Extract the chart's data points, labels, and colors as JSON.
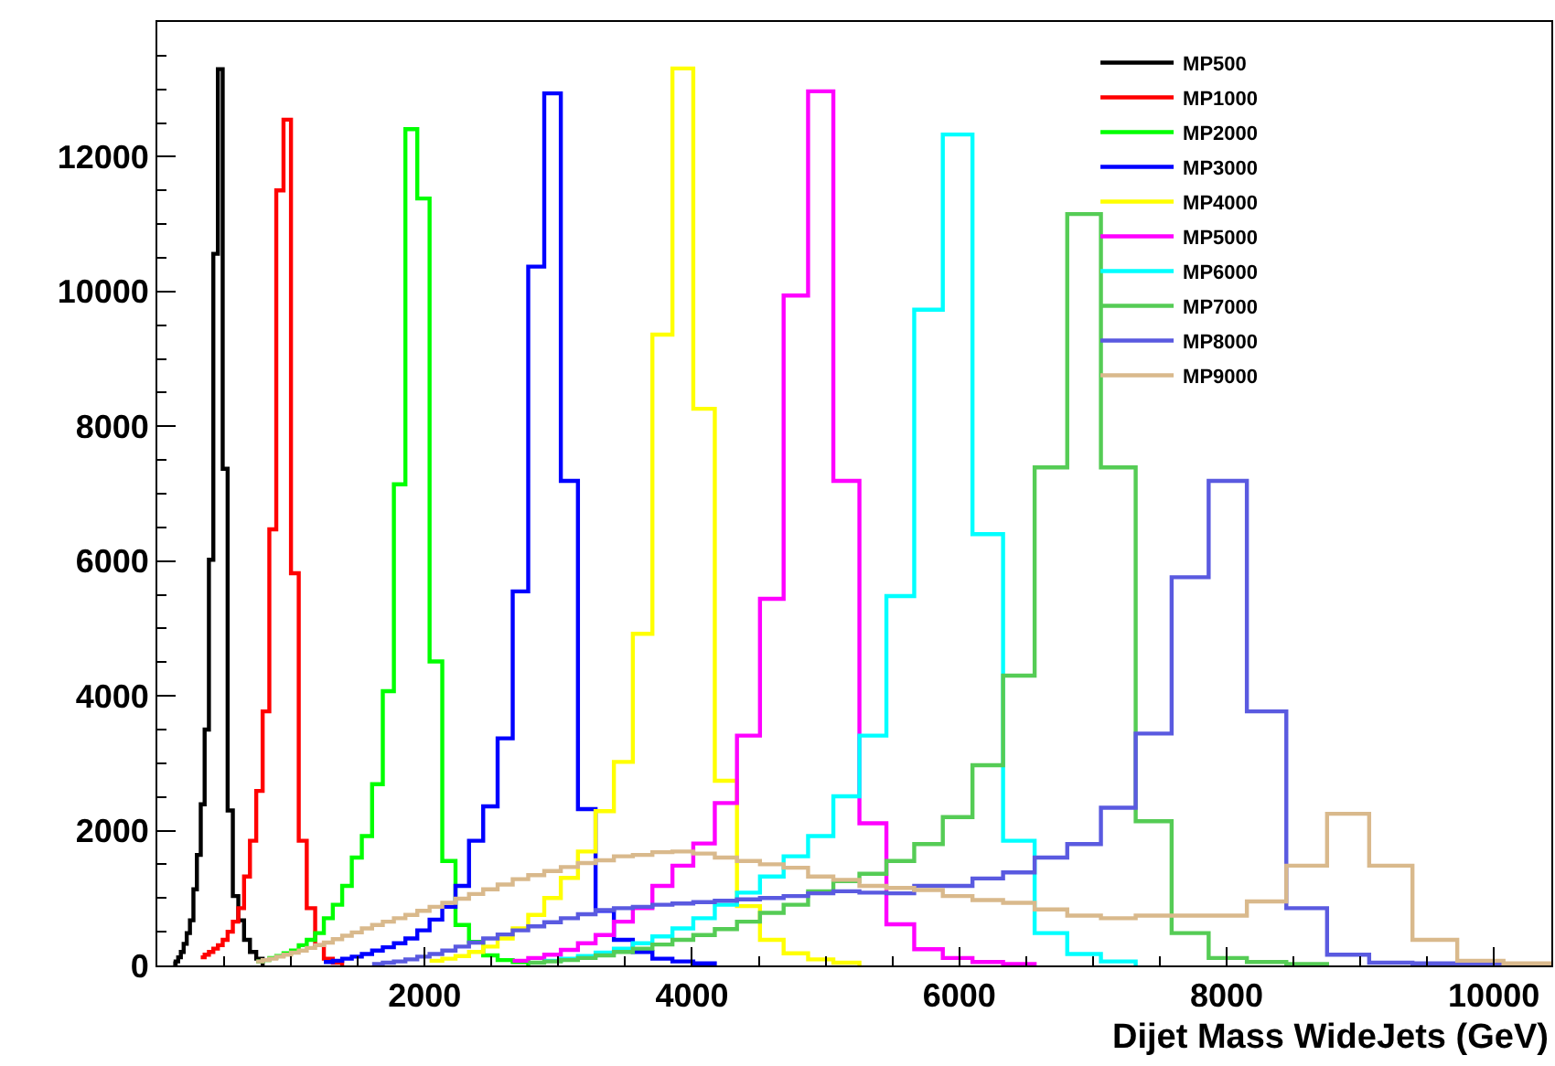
{
  "chart_data": {
    "type": "step",
    "xlabel": "Dijet Mass WideJets (GeV)",
    "xlim": [
      0,
      10430
    ],
    "ylim": [
      0,
      14000
    ],
    "xticks": [
      2000,
      4000,
      6000,
      8000,
      10000
    ],
    "yticks": [
      0,
      2000,
      4000,
      6000,
      8000,
      10000,
      12000
    ],
    "legend": "top right",
    "series": [
      {
        "name": "MP500",
        "color": "#000000",
        "x": [
          119,
          137,
          156,
          176,
          197,
          220,
          244,
          270,
          296,
          325,
          354,
          386,
          419,
          453,
          489,
          526,
          565,
          606,
          649,
          693,
          740,
          788
        ],
        "values": [
          30,
          60,
          120,
          200,
          320,
          480,
          670,
          1130,
          1640,
          2390,
          3500,
          6020,
          10560,
          13300,
          7370,
          2300,
          1030,
          670,
          380,
          200,
          100,
          0
        ]
      },
      {
        "name": "MP1000",
        "color": "#ff0000",
        "x": [
          325,
          354,
          386,
          419,
          453,
          489,
          526,
          565,
          606,
          649,
          693,
          740,
          788,
          838,
          890,
          944,
          1000,
          1058,
          1118,
          1181,
          1246,
          1313,
          1383
        ],
        "values": [
          120,
          160,
          200,
          250,
          300,
          380,
          500,
          650,
          850,
          1320,
          1850,
          2590,
          3770,
          6470,
          11500,
          12550,
          5820,
          1850,
          850,
          300,
          100,
          40,
          0
        ]
      },
      {
        "name": "MP2000",
        "color": "#00ff00",
        "x": [
          740,
          788,
          838,
          890,
          944,
          1000,
          1058,
          1118,
          1181,
          1246,
          1313,
          1383,
          1455,
          1530,
          1607,
          1687,
          1770,
          1856,
          1945,
          2037,
          2132,
          2231,
          2332,
          2438,
          2546,
          2659,
          2775
        ],
        "values": [
          60,
          80,
          110,
          140,
          180,
          220,
          300,
          380,
          480,
          700,
          900,
          1180,
          1600,
          1920,
          2690,
          4070,
          7140,
          12410,
          11380,
          4510,
          1550,
          600,
          350,
          150,
          80,
          50,
          0
        ]
      },
      {
        "name": "MP3000",
        "color": "#0000ff",
        "x": [
          1246,
          1313,
          1383,
          1455,
          1530,
          1607,
          1687,
          1770,
          1856,
          1945,
          2037,
          2132,
          2231,
          2332,
          2438,
          2546,
          2659,
          2775,
          2895,
          3019,
          3147,
          3279,
          3416,
          3558,
          3704,
          3854,
          4010,
          4171
        ],
        "values": [
          50,
          70,
          100,
          130,
          170,
          220,
          270,
          330,
          400,
          520,
          680,
          870,
          1180,
          1850,
          2360,
          3370,
          5550,
          10370,
          12940,
          7190,
          2320,
          810,
          380,
          200,
          100,
          60,
          30,
          0
        ]
      },
      {
        "name": "MP4000",
        "color": "#ffff00",
        "x": [
          2037,
          2132,
          2231,
          2332,
          2438,
          2546,
          2659,
          2775,
          2895,
          3019,
          3147,
          3279,
          3416,
          3558,
          3704,
          3854,
          4010,
          4171,
          4337,
          4509,
          4686,
          4869,
          5058,
          5253
        ],
        "values": [
          70,
          100,
          140,
          200,
          280,
          400,
          550,
          750,
          1000,
          1300,
          1690,
          2290,
          3020,
          4920,
          9360,
          13310,
          8260,
          2740,
          880,
          380,
          180,
          90,
          40,
          0
        ]
      },
      {
        "name": "MP5000",
        "color": "#ff00ff",
        "x": [
          2659,
          2775,
          2895,
          3019,
          3147,
          3279,
          3416,
          3558,
          3704,
          3854,
          4010,
          4171,
          4337,
          4509,
          4686,
          4869,
          5058,
          5253,
          5455,
          5663,
          5877,
          6099,
          6328,
          6564
        ],
        "values": [
          70,
          110,
          160,
          230,
          330,
          450,
          650,
          850,
          1180,
          1480,
          1810,
          2410,
          3410,
          5440,
          9940,
          12970,
          7190,
          2110,
          610,
          240,
          110,
          50,
          20,
          0
        ]
      },
      {
        "name": "MP6000",
        "color": "#00ffff",
        "x": [
          2895,
          3019,
          3147,
          3279,
          3416,
          3558,
          3704,
          3854,
          4010,
          4171,
          4337,
          4509,
          4686,
          4869,
          5058,
          5253,
          5455,
          5663,
          5877,
          6099,
          6328,
          6564,
          6808,
          7060,
          7320
        ],
        "values": [
          70,
          100,
          140,
          190,
          250,
          330,
          430,
          550,
          700,
          900,
          1080,
          1320,
          1620,
          1920,
          2510,
          3410,
          5480,
          9730,
          12330,
          6400,
          1850,
          480,
          170,
          60,
          0
        ]
      },
      {
        "name": "MP7000",
        "color": "#55cc55",
        "x": [
          2775,
          2895,
          3019,
          3147,
          3279,
          3416,
          3558,
          3704,
          3854,
          4010,
          4171,
          4337,
          4509,
          4686,
          4869,
          5058,
          5253,
          5455,
          5663,
          5877,
          6099,
          6328,
          6564,
          6808,
          7060,
          7320,
          7589,
          7866,
          8152,
          8447,
          8752
        ],
        "values": [
          40,
          60,
          80,
          110,
          150,
          200,
          250,
          310,
          380,
          450,
          540,
          650,
          780,
          900,
          1100,
          1250,
          1360,
          1550,
          1800,
          2200,
          2970,
          4300,
          7390,
          11150,
          7390,
          2140,
          480,
          110,
          50,
          20,
          0
        ]
      },
      {
        "name": "MP8000",
        "color": "#5a5ae0",
        "x": [
          1607,
          1687,
          1770,
          1856,
          1945,
          2037,
          2132,
          2231,
          2332,
          2438,
          2546,
          2659,
          2775,
          2895,
          3019,
          3147,
          3279,
          3416,
          3558,
          3704,
          3854,
          4010,
          4171,
          4337,
          4509,
          4686,
          4869,
          5058,
          5253,
          5455,
          5663,
          5877,
          6099,
          6328,
          6564,
          6808,
          7060,
          7320,
          7589,
          7866,
          8152,
          8447,
          8752,
          9067,
          9391,
          9726,
          10072
        ],
        "values": [
          20,
          40,
          60,
          90,
          130,
          170,
          220,
          280,
          340,
          400,
          460,
          520,
          580,
          640,
          700,
          760,
          820,
          850,
          870,
          900,
          920,
          940,
          960,
          980,
          1000,
          1030,
          1070,
          1100,
          1080,
          1070,
          1180,
          1180,
          1290,
          1380,
          1600,
          1800,
          2340,
          3440,
          5760,
          7190,
          3770,
          850,
          160,
          40,
          30,
          20,
          0
        ]
      },
      {
        "name": "MP9000",
        "color": "#d9b98c",
        "x": [
          740,
          788,
          838,
          890,
          944,
          1000,
          1058,
          1118,
          1181,
          1246,
          1313,
          1383,
          1455,
          1530,
          1607,
          1687,
          1770,
          1856,
          1945,
          2037,
          2132,
          2231,
          2332,
          2438,
          2546,
          2659,
          2775,
          2895,
          3019,
          3147,
          3279,
          3416,
          3558,
          3704,
          3854,
          4010,
          4171,
          4337,
          4509,
          4686,
          4869,
          5058,
          5253,
          5455,
          5663,
          5877,
          6099,
          6328,
          6564,
          6808,
          7060,
          7320,
          7589,
          7866,
          8152,
          8447,
          8752,
          9067,
          9391,
          9726,
          10072,
          10430
        ],
        "values": [
          60,
          80,
          100,
          130,
          160,
          190,
          220,
          260,
          300,
          340,
          390,
          440,
          490,
          550,
          600,
          650,
          700,
          750,
          810,
          870,
          930,
          990,
          1060,
          1130,
          1200,
          1280,
          1340,
          1400,
          1460,
          1520,
          1560,
          1620,
          1640,
          1680,
          1690,
          1660,
          1600,
          1550,
          1500,
          1450,
          1320,
          1270,
          1180,
          1150,
          1120,
          1030,
          970,
          930,
          830,
          740,
          700,
          740,
          740,
          740,
          950,
          1480,
          2250,
          1480,
          380,
          70,
          30,
          0
        ]
      }
    ]
  }
}
